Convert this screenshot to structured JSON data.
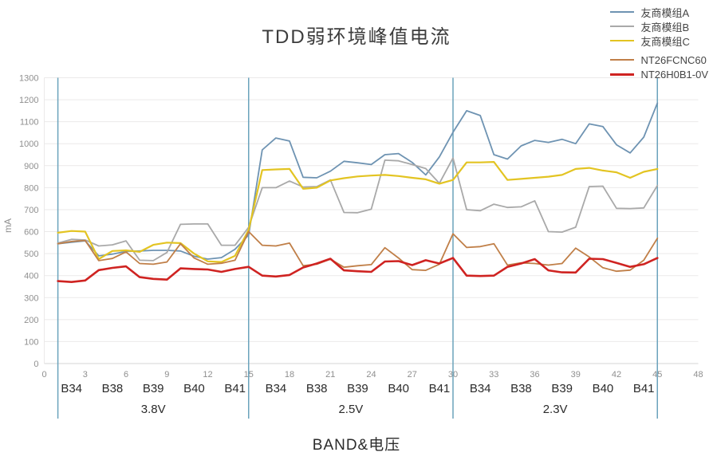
{
  "chart_data": {
    "type": "line",
    "title": "TDD弱环境峰值电流",
    "xlabel": "BAND&电压",
    "ylabel": "mA",
    "xlim": [
      0,
      48
    ],
    "ylim": [
      0,
      1300
    ],
    "grid": "horizontal",
    "legend_position": "top-right",
    "x_ticks": [
      0,
      3,
      6,
      9,
      12,
      15,
      18,
      21,
      24,
      27,
      30,
      33,
      36,
      39,
      42,
      45,
      48
    ],
    "y_ticks": [
      0,
      100,
      200,
      300,
      400,
      500,
      600,
      700,
      800,
      900,
      1000,
      1100,
      1200,
      1300
    ],
    "separator_x": [
      1,
      15,
      30,
      45
    ],
    "separator_color": "#6ba3bc",
    "gridline_color": "#ebe9e9",
    "axis_line_color": "#d6d4d4",
    "tick_text_color": "#8f8f8f",
    "label_text_color": "#2b2b2b",
    "band_labels": [
      {
        "label": "B34",
        "x": 2
      },
      {
        "label": "B38",
        "x": 5
      },
      {
        "label": "B39",
        "x": 8
      },
      {
        "label": "B40",
        "x": 11
      },
      {
        "label": "B41",
        "x": 14
      },
      {
        "label": "B34",
        "x": 17
      },
      {
        "label": "B38",
        "x": 20
      },
      {
        "label": "B39",
        "x": 23
      },
      {
        "label": "B40",
        "x": 26
      },
      {
        "label": "B41",
        "x": 29
      },
      {
        "label": "B34",
        "x": 32
      },
      {
        "label": "B38",
        "x": 35
      },
      {
        "label": "B39",
        "x": 38
      },
      {
        "label": "B40",
        "x": 41
      },
      {
        "label": "B41",
        "x": 44
      }
    ],
    "voltage_labels": [
      {
        "label": "3.8V",
        "x": 8
      },
      {
        "label": "2.5V",
        "x": 22.5
      },
      {
        "label": "2.3V",
        "x": 37.5
      }
    ],
    "x": [
      1,
      2,
      3,
      4,
      5,
      6,
      7,
      8,
      9,
      10,
      11,
      12,
      13,
      14,
      15,
      16,
      17,
      18,
      19,
      20,
      21,
      22,
      23,
      24,
      25,
      26,
      27,
      28,
      29,
      30,
      31,
      32,
      33,
      34,
      35,
      36,
      37,
      38,
      39,
      40,
      41,
      42,
      43,
      44,
      45
    ],
    "series": [
      {
        "name": "友商模组A",
        "color": "#6e93b2",
        "width": 1.8,
        "values": [
          545,
          552,
          558,
          490,
          498,
          510,
          512,
          515,
          515,
          512,
          488,
          475,
          482,
          520,
          585,
          972,
          1026,
          1012,
          847,
          845,
          875,
          920,
          913,
          905,
          950,
          955,
          915,
          858,
          940,
          1052,
          1150,
          1128,
          950,
          930,
          990,
          1015,
          1006,
          1020,
          1000,
          1090,
          1078,
          995,
          958,
          1030,
          1185
        ]
      },
      {
        "name": "友商模组B",
        "color": "#a9a9a9",
        "width": 1.8,
        "values": [
          548,
          565,
          562,
          535,
          540,
          558,
          470,
          468,
          505,
          633,
          635,
          635,
          538,
          538,
          620,
          800,
          800,
          830,
          803,
          805,
          835,
          687,
          686,
          702,
          925,
          922,
          905,
          887,
          820,
          935,
          700,
          695,
          725,
          710,
          713,
          740,
          600,
          598,
          620,
          805,
          807,
          706,
          705,
          708,
          810
        ]
      },
      {
        "name": "友商模组C",
        "color": "#e3c422",
        "width": 2.2,
        "values": [
          595,
          603,
          600,
          475,
          512,
          515,
          508,
          540,
          550,
          548,
          500,
          465,
          462,
          490,
          608,
          880,
          883,
          885,
          795,
          800,
          833,
          843,
          851,
          855,
          858,
          853,
          845,
          838,
          818,
          835,
          915,
          915,
          917,
          835,
          840,
          845,
          850,
          858,
          885,
          890,
          878,
          870,
          845,
          872,
          885
        ]
      },
      {
        "name": "NT26FCNC60",
        "color": "#c07f48",
        "width": 1.8,
        "values": [
          545,
          555,
          560,
          468,
          478,
          508,
          455,
          452,
          462,
          545,
          480,
          452,
          456,
          470,
          600,
          538,
          535,
          548,
          445,
          452,
          475,
          438,
          445,
          450,
          527,
          480,
          427,
          424,
          452,
          590,
          528,
          532,
          545,
          448,
          458,
          455,
          448,
          455,
          525,
          485,
          436,
          420,
          425,
          470,
          570
        ]
      },
      {
        "name": "NT26H0B1-0V",
        "color": "#cf2321",
        "width": 2.6,
        "values": [
          375,
          371,
          378,
          425,
          435,
          442,
          393,
          385,
          382,
          433,
          430,
          428,
          417,
          430,
          440,
          400,
          396,
          403,
          437,
          455,
          477,
          424,
          420,
          417,
          464,
          466,
          448,
          470,
          455,
          480,
          400,
          398,
          400,
          440,
          455,
          475,
          424,
          415,
          414,
          477,
          475,
          458,
          440,
          452,
          480
        ]
      }
    ]
  }
}
